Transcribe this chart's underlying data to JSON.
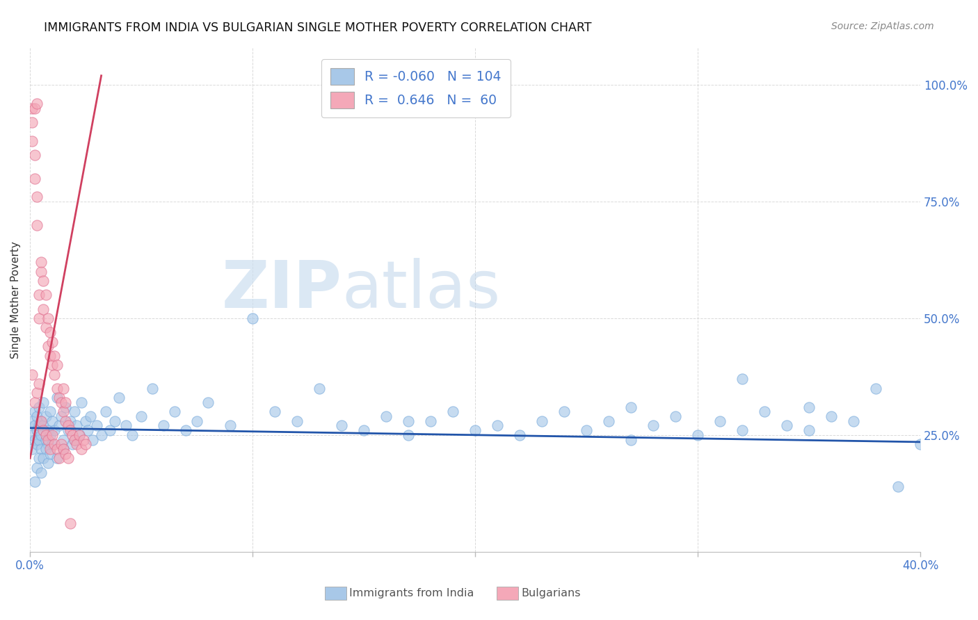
{
  "title": "IMMIGRANTS FROM INDIA VS BULGARIAN SINGLE MOTHER POVERTY CORRELATION CHART",
  "source": "Source: ZipAtlas.com",
  "ylabel": "Single Mother Poverty",
  "ytick_labels": [
    "100.0%",
    "75.0%",
    "50.0%",
    "25.0%"
  ],
  "ytick_values": [
    1.0,
    0.75,
    0.5,
    0.25
  ],
  "xlim": [
    0.0,
    0.4
  ],
  "ylim": [
    0.0,
    1.08
  ],
  "india_color": "#a8c8e8",
  "bulgaria_color": "#f4a8b8",
  "india_line_color": "#2255aa",
  "bulgaria_line_color": "#d04060",
  "watermark_zip": "ZIP",
  "watermark_atlas": "atlas",
  "india_legend_color": "#a8c8e8",
  "bulgaria_legend_color": "#f4a8b8",
  "india_trend_x": [
    0.0,
    0.4
  ],
  "india_trend_y": [
    0.265,
    0.235
  ],
  "bulgaria_trend_x": [
    0.0,
    0.032
  ],
  "bulgaria_trend_y": [
    0.2,
    1.02
  ],
  "india_scatter_x": [
    0.001,
    0.001,
    0.001,
    0.002,
    0.002,
    0.002,
    0.003,
    0.003,
    0.003,
    0.004,
    0.004,
    0.004,
    0.005,
    0.005,
    0.005,
    0.006,
    0.006,
    0.007,
    0.007,
    0.008,
    0.008,
    0.009,
    0.009,
    0.01,
    0.011,
    0.012,
    0.013,
    0.014,
    0.015,
    0.016,
    0.017,
    0.018,
    0.019,
    0.02,
    0.021,
    0.022,
    0.023,
    0.025,
    0.026,
    0.027,
    0.028,
    0.03,
    0.032,
    0.034,
    0.036,
    0.038,
    0.04,
    0.043,
    0.046,
    0.05,
    0.055,
    0.06,
    0.065,
    0.07,
    0.075,
    0.08,
    0.09,
    0.1,
    0.11,
    0.12,
    0.13,
    0.14,
    0.15,
    0.16,
    0.17,
    0.18,
    0.19,
    0.2,
    0.21,
    0.22,
    0.23,
    0.24,
    0.25,
    0.26,
    0.27,
    0.28,
    0.29,
    0.3,
    0.31,
    0.32,
    0.33,
    0.34,
    0.35,
    0.36,
    0.37,
    0.38,
    0.39,
    0.4,
    0.17,
    0.27,
    0.32,
    0.35,
    0.002,
    0.003,
    0.004,
    0.005,
    0.006,
    0.007,
    0.008,
    0.009,
    0.01,
    0.012,
    0.015,
    0.02
  ],
  "india_scatter_y": [
    0.28,
    0.25,
    0.22,
    0.3,
    0.27,
    0.24,
    0.29,
    0.26,
    0.23,
    0.31,
    0.27,
    0.24,
    0.28,
    0.25,
    0.22,
    0.32,
    0.27,
    0.29,
    0.24,
    0.26,
    0.23,
    0.3,
    0.25,
    0.28,
    0.26,
    0.33,
    0.27,
    0.29,
    0.24,
    0.31,
    0.26,
    0.28,
    0.23,
    0.3,
    0.27,
    0.25,
    0.32,
    0.28,
    0.26,
    0.29,
    0.24,
    0.27,
    0.25,
    0.3,
    0.26,
    0.28,
    0.33,
    0.27,
    0.25,
    0.29,
    0.35,
    0.27,
    0.3,
    0.26,
    0.28,
    0.32,
    0.27,
    0.5,
    0.3,
    0.28,
    0.35,
    0.27,
    0.26,
    0.29,
    0.25,
    0.28,
    0.3,
    0.26,
    0.27,
    0.25,
    0.28,
    0.3,
    0.26,
    0.28,
    0.24,
    0.27,
    0.29,
    0.25,
    0.28,
    0.26,
    0.3,
    0.27,
    0.26,
    0.29,
    0.28,
    0.35,
    0.14,
    0.23,
    0.28,
    0.31,
    0.37,
    0.31,
    0.15,
    0.18,
    0.2,
    0.17,
    0.2,
    0.22,
    0.19,
    0.21,
    0.23,
    0.2,
    0.22,
    0.24
  ],
  "bulgaria_scatter_x": [
    0.001,
    0.001,
    0.001,
    0.002,
    0.002,
    0.002,
    0.003,
    0.003,
    0.003,
    0.004,
    0.004,
    0.005,
    0.005,
    0.006,
    0.006,
    0.007,
    0.007,
    0.008,
    0.008,
    0.009,
    0.009,
    0.01,
    0.01,
    0.011,
    0.011,
    0.012,
    0.012,
    0.013,
    0.014,
    0.015,
    0.015,
    0.016,
    0.016,
    0.017,
    0.018,
    0.019,
    0.02,
    0.021,
    0.022,
    0.023,
    0.024,
    0.025,
    0.001,
    0.002,
    0.003,
    0.004,
    0.005,
    0.006,
    0.007,
    0.008,
    0.009,
    0.01,
    0.011,
    0.012,
    0.013,
    0.014,
    0.015,
    0.016,
    0.017,
    0.018
  ],
  "bulgaria_scatter_y": [
    0.95,
    0.92,
    0.88,
    0.95,
    0.85,
    0.8,
    0.96,
    0.76,
    0.7,
    0.5,
    0.55,
    0.6,
    0.62,
    0.52,
    0.58,
    0.55,
    0.48,
    0.5,
    0.44,
    0.47,
    0.42,
    0.45,
    0.4,
    0.38,
    0.42,
    0.35,
    0.4,
    0.33,
    0.32,
    0.3,
    0.35,
    0.28,
    0.32,
    0.27,
    0.26,
    0.25,
    0.24,
    0.23,
    0.25,
    0.22,
    0.24,
    0.23,
    0.38,
    0.32,
    0.34,
    0.36,
    0.28,
    0.26,
    0.25,
    0.24,
    0.22,
    0.25,
    0.23,
    0.22,
    0.2,
    0.23,
    0.22,
    0.21,
    0.2,
    0.06
  ]
}
